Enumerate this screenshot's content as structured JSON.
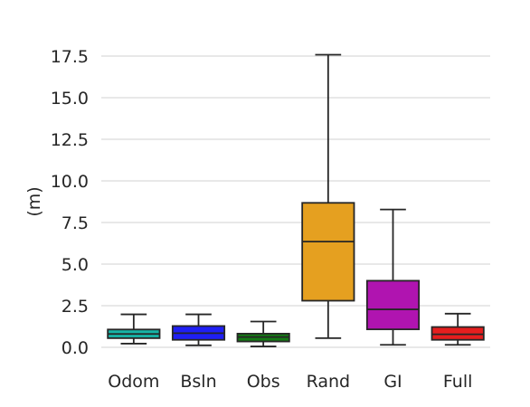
{
  "chart_data": {
    "type": "box",
    "ylabel": "(m)",
    "xlabel": "",
    "title": "",
    "ylim": [
      0,
      17.5
    ],
    "yticks": [
      0.0,
      2.5,
      5.0,
      7.5,
      10.0,
      12.5,
      15.0,
      17.5
    ],
    "ytick_labels": [
      "0.0",
      "2.5",
      "5.0",
      "7.5",
      "10.0",
      "12.5",
      "15.0",
      "17.5"
    ],
    "grid": "horizontal",
    "categories": [
      "Odom",
      "Bsln",
      "Obs",
      "Rand",
      "GI",
      "Full"
    ],
    "boxes": [
      {
        "label": "Odom",
        "whislo": 0.22,
        "q1": 0.55,
        "med": 0.8,
        "q3": 1.07,
        "whishi": 1.98,
        "color": "#17b3a6"
      },
      {
        "label": "Bsln",
        "whislo": 0.12,
        "q1": 0.45,
        "med": 0.85,
        "q3": 1.28,
        "whishi": 1.98,
        "color": "#1f1ff5"
      },
      {
        "label": "Obs",
        "whislo": 0.05,
        "q1": 0.35,
        "med": 0.62,
        "q3": 0.82,
        "whishi": 1.55,
        "color": "#137a13"
      },
      {
        "label": "Rand",
        "whislo": 0.55,
        "q1": 2.8,
        "med": 6.35,
        "q3": 8.68,
        "whishi": 17.58,
        "color": "#e5a020"
      },
      {
        "label": "GI",
        "whislo": 0.15,
        "q1": 1.08,
        "med": 2.28,
        "q3": 4.0,
        "whishi": 8.28,
        "color": "#b014b0"
      },
      {
        "label": "Full",
        "whislo": 0.15,
        "q1": 0.45,
        "med": 0.78,
        "q3": 1.22,
        "whishi": 2.02,
        "color": "#e51e1e"
      }
    ]
  }
}
